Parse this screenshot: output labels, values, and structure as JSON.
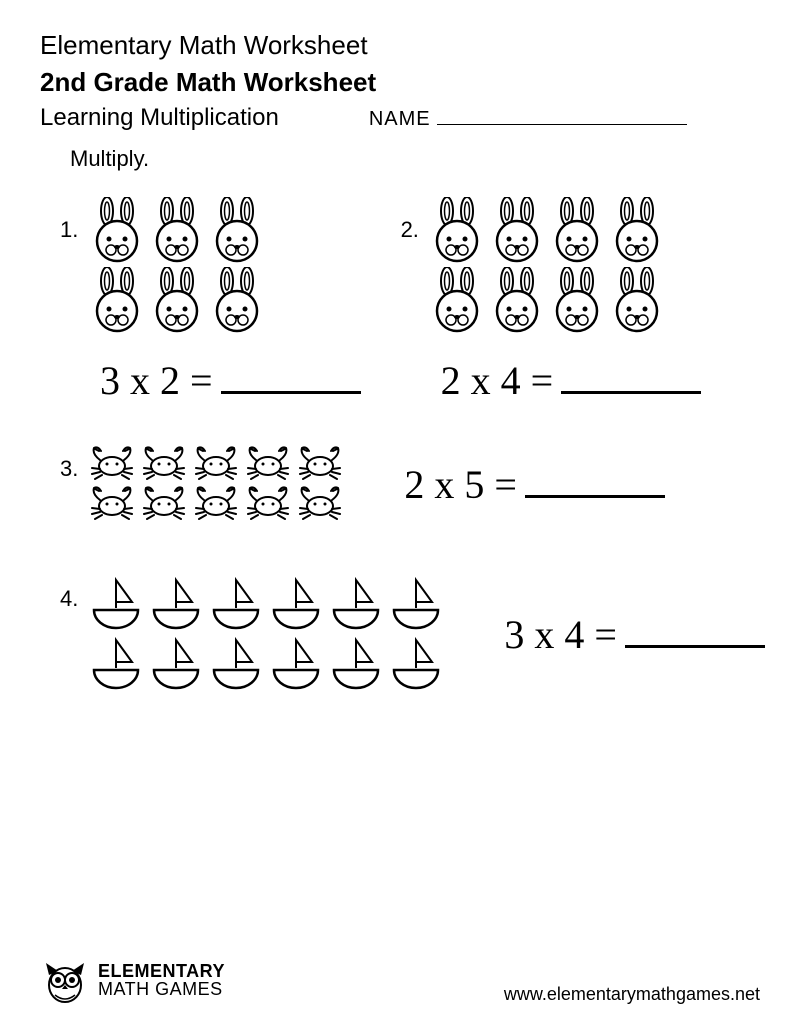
{
  "header": {
    "title": "Elementary Math Worksheet",
    "subtitle": "2nd Grade Math Worksheet",
    "topic": "Learning Multiplication",
    "name_label": "NAME"
  },
  "instruction": "Multiply.",
  "icons": {
    "bunny_size": 56,
    "crab_size": 48,
    "boat_size": 56,
    "stroke": "#000000",
    "fill": "#ffffff"
  },
  "problems": [
    {
      "num": "1.",
      "icon": "bunny",
      "rows": 2,
      "cols": 3,
      "equation": "3 x 2 ="
    },
    {
      "num": "2.",
      "icon": "bunny",
      "rows": 2,
      "cols": 4,
      "equation": "2 x 4 ="
    },
    {
      "num": "3.",
      "icon": "crab",
      "rows": 2,
      "cols": 5,
      "equation": "2 x 5 ="
    },
    {
      "num": "4.",
      "icon": "boat",
      "rows": 2,
      "cols": 6,
      "equation": "3 x 4 ="
    }
  ],
  "footer": {
    "brand_line1": "ELEMENTARY",
    "brand_line2": "MATH GAMES",
    "url": "www.elementarymathgames.net"
  },
  "colors": {
    "text": "#000000",
    "background": "#ffffff"
  }
}
